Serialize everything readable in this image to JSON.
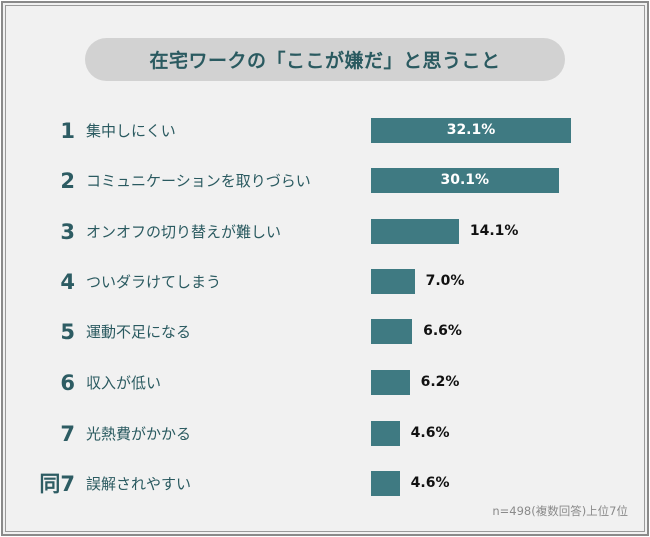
{
  "chart_data": {
    "type": "bar",
    "orientation": "horizontal",
    "title": "在宅ワークの「ここが嫌だ」と思うこと",
    "ranks": [
      "1",
      "2",
      "3",
      "4",
      "5",
      "6",
      "7",
      "同7"
    ],
    "categories": [
      "集中しにくい",
      "コミュニケーションを取りづらい",
      "オンオフの切り替えが難しい",
      "ついダラけてしまう",
      "運動不足になる",
      "収入が低い",
      "光熱費がかかる",
      "誤解されやすい"
    ],
    "values": [
      32.1,
      30.1,
      14.1,
      7.0,
      6.6,
      6.2,
      4.6,
      4.6
    ],
    "data_labels": [
      "32.1%",
      "30.1%",
      "14.1%",
      "7.0%",
      "6.6%",
      "6.2%",
      "4.6%",
      "4.6%"
    ],
    "unit": "%",
    "note": "n=498(複数回答)上位7位",
    "grid": false,
    "legend": "none",
    "colors": {
      "bar": "#3f7a82",
      "rank": "#2d5c63",
      "title_bg": "#d2d2d2"
    }
  }
}
